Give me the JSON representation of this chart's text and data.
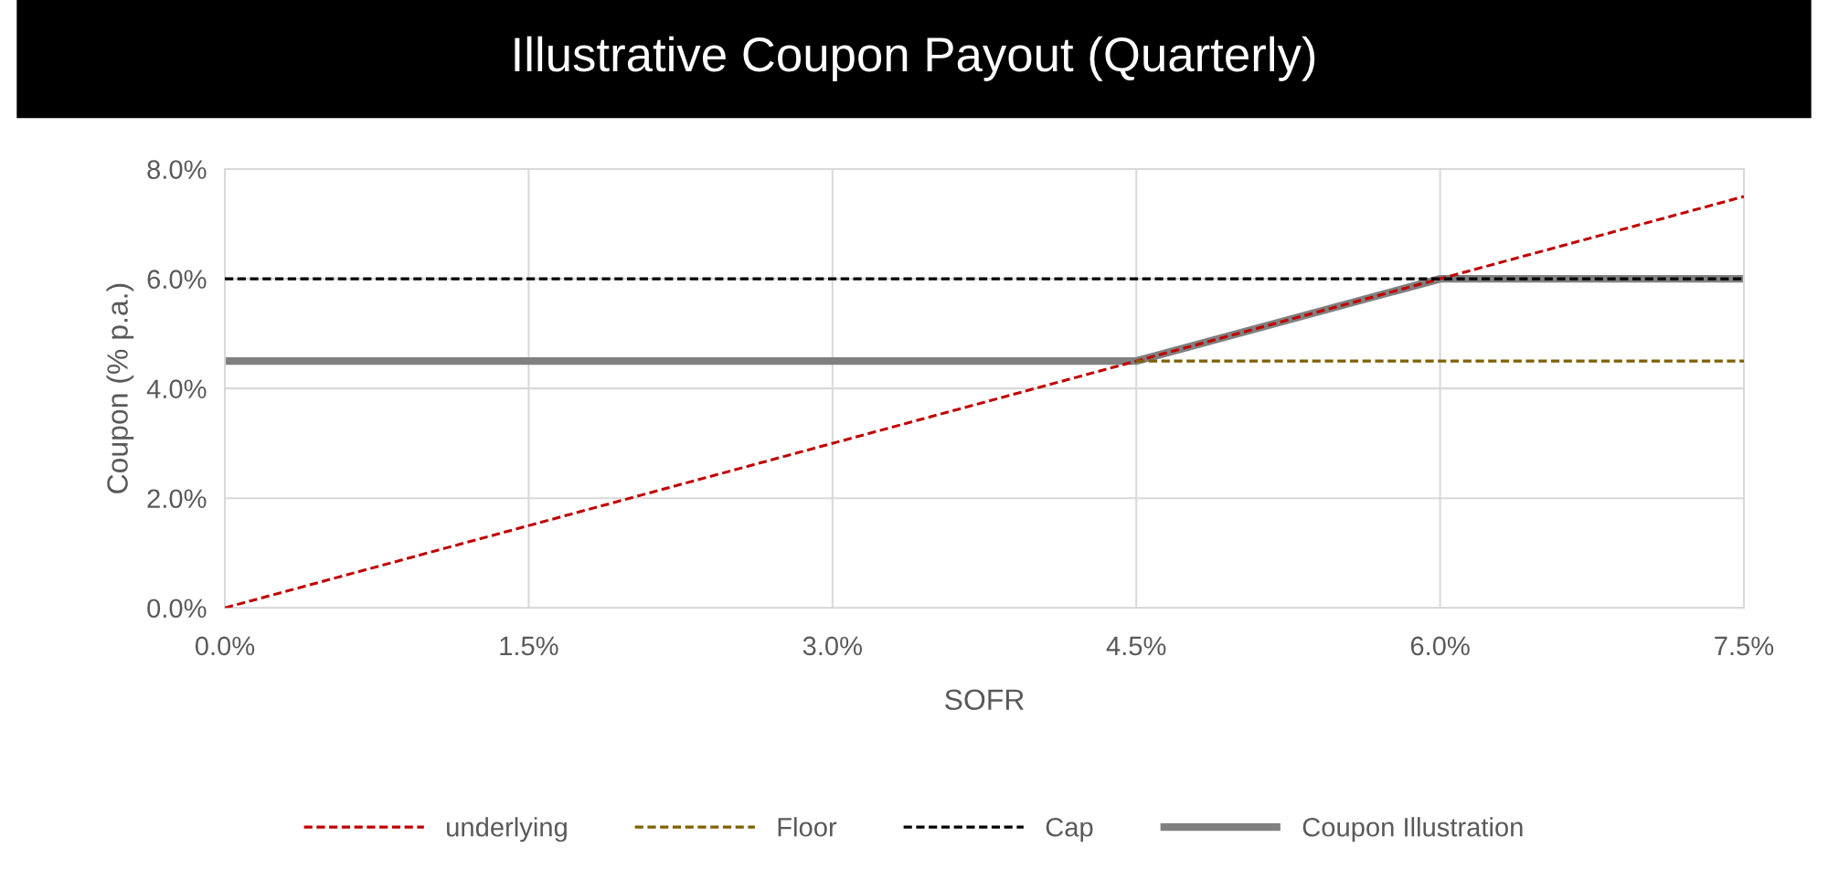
{
  "chart_data": {
    "type": "line",
    "title": "Illustrative Coupon Payout (Quarterly)",
    "xlabel": "SOFR",
    "ylabel": "Coupon (% p.a.)",
    "xlim": [
      0,
      7.5
    ],
    "ylim": [
      0,
      8
    ],
    "xticks": [
      {
        "value": 0,
        "label": "0.0%"
      },
      {
        "value": 1.5,
        "label": "1.5%"
      },
      {
        "value": 3,
        "label": "3.0%"
      },
      {
        "value": 4.5,
        "label": "4.5%"
      },
      {
        "value": 6,
        "label": "6.0%"
      },
      {
        "value": 7.5,
        "label": "7.5%"
      }
    ],
    "yticks": [
      {
        "value": 0,
        "label": "0.0%"
      },
      {
        "value": 2,
        "label": "2.0%"
      },
      {
        "value": 4,
        "label": "4.0%"
      },
      {
        "value": 6,
        "label": "6.0%"
      },
      {
        "value": 8,
        "label": "8.0%"
      }
    ],
    "grid": true,
    "legend": "bottom",
    "marker": "none",
    "series": [
      {
        "name": "underlying",
        "color": "#c00000",
        "line_style": "dashed",
        "x": [
          0,
          7.5
        ],
        "values": [
          0,
          7.5
        ]
      },
      {
        "name": "Floor",
        "color": "#7f6000",
        "line_style": "dashed",
        "x": [
          4.5,
          7.5
        ],
        "values": [
          4.5,
          4.5
        ]
      },
      {
        "name": "Cap",
        "color": "#000000",
        "line_style": "dashed",
        "x": [
          0,
          7.5
        ],
        "values": [
          6,
          6
        ]
      },
      {
        "name": "Coupon Illustration",
        "color": "#808080",
        "line_style": "solid",
        "x": [
          0,
          4.5,
          6,
          7.5
        ],
        "values": [
          4.5,
          4.5,
          6,
          6
        ]
      }
    ]
  }
}
